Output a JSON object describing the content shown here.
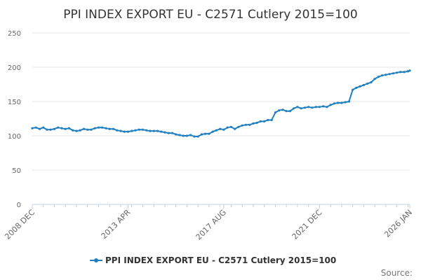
{
  "chart_data": {
    "type": "line",
    "title": "PPI INDEX EXPORT EU - C2571 Cutlery 2015=100",
    "xlabel": "",
    "ylabel": "",
    "x_range": [
      "2008-12",
      "2026-01"
    ],
    "ylim": [
      0,
      250
    ],
    "y_ticks": [
      0,
      50,
      100,
      150,
      200,
      250
    ],
    "x_tick_labels": [
      "2008 DEC",
      "2013 APR",
      "2017 AUG",
      "2021 DEC",
      "2026 JAN"
    ],
    "grid": true,
    "legend_position": "bottom",
    "series": [
      {
        "name": "PPI INDEX EXPORT EU - C2571 Cutlery 2015=100",
        "color": "#1f7fbf",
        "points": [
          [
            "2008-12",
            111
          ],
          [
            "2009-02",
            112
          ],
          [
            "2009-04",
            110
          ],
          [
            "2009-06",
            112
          ],
          [
            "2009-08",
            109
          ],
          [
            "2009-10",
            109
          ],
          [
            "2009-12",
            110
          ],
          [
            "2010-02",
            112
          ],
          [
            "2010-04",
            111
          ],
          [
            "2010-06",
            110
          ],
          [
            "2010-08",
            111
          ],
          [
            "2010-10",
            108
          ],
          [
            "2010-12",
            107
          ],
          [
            "2011-02",
            108
          ],
          [
            "2011-04",
            110
          ],
          [
            "2011-06",
            109
          ],
          [
            "2011-08",
            109
          ],
          [
            "2011-10",
            111
          ],
          [
            "2011-12",
            112
          ],
          [
            "2012-02",
            112
          ],
          [
            "2012-04",
            111
          ],
          [
            "2012-06",
            110
          ],
          [
            "2012-08",
            110
          ],
          [
            "2012-10",
            108
          ],
          [
            "2012-12",
            107
          ],
          [
            "2013-02",
            106
          ],
          [
            "2013-04",
            106
          ],
          [
            "2013-06",
            107
          ],
          [
            "2013-08",
            108
          ],
          [
            "2013-10",
            109
          ],
          [
            "2013-12",
            109
          ],
          [
            "2014-02",
            108
          ],
          [
            "2014-04",
            107
          ],
          [
            "2014-06",
            107
          ],
          [
            "2014-08",
            107
          ],
          [
            "2014-10",
            106
          ],
          [
            "2014-12",
            105
          ],
          [
            "2015-02",
            104
          ],
          [
            "2015-04",
            104
          ],
          [
            "2015-06",
            102
          ],
          [
            "2015-08",
            101
          ],
          [
            "2015-10",
            100
          ],
          [
            "2015-12",
            100
          ],
          [
            "2016-02",
            101
          ],
          [
            "2016-04",
            99
          ],
          [
            "2016-06",
            99
          ],
          [
            "2016-08",
            102
          ],
          [
            "2016-10",
            103
          ],
          [
            "2016-12",
            103
          ],
          [
            "2017-02",
            106
          ],
          [
            "2017-04",
            108
          ],
          [
            "2017-06",
            110
          ],
          [
            "2017-08",
            109
          ],
          [
            "2017-10",
            112
          ],
          [
            "2017-12",
            113
          ],
          [
            "2018-02",
            110
          ],
          [
            "2018-04",
            113
          ],
          [
            "2018-06",
            115
          ],
          [
            "2018-08",
            116
          ],
          [
            "2018-10",
            116
          ],
          [
            "2018-12",
            118
          ],
          [
            "2019-02",
            119
          ],
          [
            "2019-04",
            121
          ],
          [
            "2019-06",
            121
          ],
          [
            "2019-08",
            123
          ],
          [
            "2019-10",
            123
          ],
          [
            "2019-12",
            134
          ],
          [
            "2020-02",
            137
          ],
          [
            "2020-04",
            138
          ],
          [
            "2020-06",
            136
          ],
          [
            "2020-08",
            136
          ],
          [
            "2020-10",
            140
          ],
          [
            "2020-12",
            142
          ],
          [
            "2021-02",
            140
          ],
          [
            "2021-04",
            141
          ],
          [
            "2021-06",
            142
          ],
          [
            "2021-08",
            141
          ],
          [
            "2021-10",
            142
          ],
          [
            "2021-12",
            142
          ],
          [
            "2022-02",
            143
          ],
          [
            "2022-04",
            142
          ],
          [
            "2022-06",
            145
          ],
          [
            "2022-08",
            147
          ],
          [
            "2022-10",
            148
          ],
          [
            "2022-12",
            148
          ],
          [
            "2023-02",
            149
          ],
          [
            "2023-04",
            150
          ],
          [
            "2023-06",
            167
          ],
          [
            "2023-08",
            170
          ],
          [
            "2023-10",
            172
          ],
          [
            "2023-12",
            174
          ],
          [
            "2024-02",
            176
          ],
          [
            "2024-04",
            178
          ],
          [
            "2024-06",
            183
          ],
          [
            "2024-08",
            186
          ],
          [
            "2024-10",
            188
          ],
          [
            "2024-12",
            189
          ],
          [
            "2025-02",
            190
          ],
          [
            "2025-04",
            191
          ],
          [
            "2025-06",
            192
          ],
          [
            "2025-08",
            193
          ],
          [
            "2025-10",
            193
          ],
          [
            "2025-12",
            194
          ],
          [
            "2026-01",
            195
          ]
        ]
      }
    ]
  },
  "footer": {
    "source_label": "Source:"
  }
}
